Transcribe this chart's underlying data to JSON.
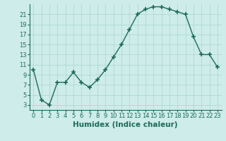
{
  "x": [
    0,
    1,
    2,
    3,
    4,
    5,
    6,
    7,
    8,
    9,
    10,
    11,
    12,
    13,
    14,
    15,
    16,
    17,
    18,
    19,
    20,
    21,
    22,
    23
  ],
  "y": [
    10,
    4,
    3,
    7.5,
    7.5,
    9.5,
    7.5,
    6.5,
    8,
    10,
    12.5,
    15,
    18,
    21,
    22,
    22.5,
    22.5,
    22,
    21.5,
    21,
    16.5,
    13,
    13,
    10.5
  ],
  "line_color": "#1a6b5a",
  "bg_color": "#ceecea",
  "grid_color": "#b0d8d4",
  "xlabel": "Humidex (Indice chaleur)",
  "xlim": [
    -0.5,
    23.5
  ],
  "ylim": [
    2,
    23
  ],
  "yticks": [
    3,
    5,
    7,
    9,
    11,
    13,
    15,
    17,
    19,
    21
  ],
  "xticks": [
    0,
    1,
    2,
    3,
    4,
    5,
    6,
    7,
    8,
    9,
    10,
    11,
    12,
    13,
    14,
    15,
    16,
    17,
    18,
    19,
    20,
    21,
    22,
    23
  ],
  "marker": "+",
  "marker_size": 4,
  "line_width": 1.0,
  "xlabel_fontsize": 7.5,
  "tick_fontsize": 6
}
